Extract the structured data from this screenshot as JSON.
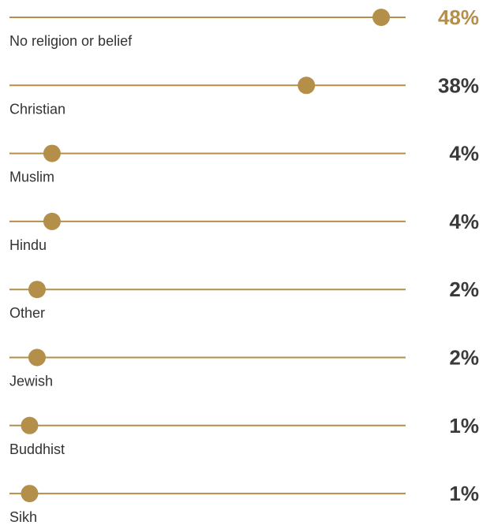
{
  "chart_data": {
    "type": "dot",
    "categories": [
      "No religion or belief",
      "Christian",
      "Muslim",
      "Hindu",
      "Other",
      "Jewish",
      "Buddhist",
      "Sikh"
    ],
    "values": [
      48,
      38,
      4,
      4,
      2,
      2,
      1,
      1
    ],
    "value_labels": [
      "48%",
      "38%",
      "4%",
      "4%",
      "2%",
      "2%",
      "1%",
      "1%"
    ],
    "xlim": [
      0,
      50
    ],
    "unit": "%",
    "grid": false,
    "colors": {
      "line": "#b38f4a",
      "dot": "#b38f4a",
      "highlight_value": "#b38f4a",
      "value": "#3a3a3a",
      "label": "#333333"
    },
    "highlight_index": 0
  }
}
